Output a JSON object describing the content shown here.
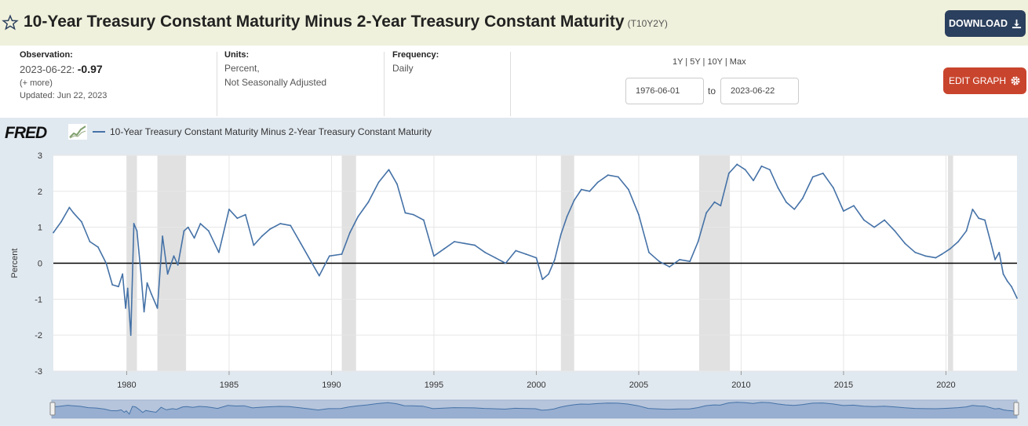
{
  "header": {
    "title": "10-Year Treasury Constant Maturity Minus 2-Year Treasury Constant Maturity",
    "series_id": "(T10Y2Y)",
    "download_label": "DOWNLOAD"
  },
  "observation": {
    "label": "Observation:",
    "date": "2023-06-22:",
    "value": "-0.97",
    "more": "(+ more)",
    "updated": "Updated: Jun 22, 2023"
  },
  "units": {
    "label": "Units:",
    "line1": "Percent,",
    "line2": "Not Seasonally Adjusted"
  },
  "frequency": {
    "label": "Frequency:",
    "value": "Daily"
  },
  "range": {
    "links": "1Y | 5Y | 10Y | Max",
    "start": "1976-06-01",
    "to": "to",
    "end": "2023-06-22"
  },
  "edit_label": "EDIT GRAPH",
  "logo_text": "FRED",
  "colors": {
    "line": "#4572a7",
    "recession": "#e1e1e1",
    "header_bg": "#f0f1dc",
    "download_bg": "#2b3f5e",
    "edit_bg": "#c9442d"
  },
  "chart_data": {
    "type": "line",
    "ylabel": "Percent",
    "ylim": [
      -3,
      3
    ],
    "xlim": [
      1976.42,
      2023.47
    ],
    "yticks": [
      -3,
      -2,
      -1,
      0,
      1,
      2,
      3
    ],
    "xticks": [
      1980,
      1985,
      1990,
      1995,
      2000,
      2005,
      2010,
      2015,
      2020
    ],
    "recessions": [
      [
        1980.0,
        1980.5
      ],
      [
        1981.5,
        1982.9
      ],
      [
        1990.5,
        1991.2
      ],
      [
        2001.2,
        2001.85
      ],
      [
        2007.95,
        2009.45
      ],
      [
        2020.1,
        2020.35
      ]
    ],
    "series": [
      {
        "name": "10-Year Treasury Constant Maturity Minus 2-Year Treasury Constant Maturity",
        "x": [
          1976.42,
          1976.8,
          1977.2,
          1977.4,
          1977.8,
          1978.2,
          1978.6,
          1979.0,
          1979.3,
          1979.6,
          1979.8,
          1979.95,
          1980.05,
          1980.2,
          1980.35,
          1980.5,
          1980.7,
          1980.85,
          1981.0,
          1981.2,
          1981.5,
          1981.75,
          1982.0,
          1982.3,
          1982.5,
          1982.8,
          1983.0,
          1983.3,
          1983.6,
          1984.0,
          1984.5,
          1985.0,
          1985.4,
          1985.8,
          1986.2,
          1986.6,
          1987.0,
          1987.5,
          1988.0,
          1988.5,
          1989.0,
          1989.4,
          1989.9,
          1990.5,
          1990.9,
          1991.3,
          1991.8,
          1992.3,
          1992.8,
          1993.2,
          1993.6,
          1994.0,
          1994.5,
          1995.0,
          1995.5,
          1996.0,
          1996.5,
          1997.0,
          1997.5,
          1998.0,
          1998.5,
          1999.0,
          1999.5,
          2000.0,
          2000.3,
          2000.6,
          2000.9,
          2001.2,
          2001.5,
          2001.85,
          2002.2,
          2002.6,
          2003.0,
          2003.5,
          2004.0,
          2004.5,
          2005.0,
          2005.5,
          2006.0,
          2006.5,
          2007.0,
          2007.5,
          2007.9,
          2008.3,
          2008.7,
          2009.0,
          2009.4,
          2009.8,
          2010.2,
          2010.6,
          2011.0,
          2011.4,
          2011.8,
          2012.2,
          2012.6,
          2013.0,
          2013.5,
          2014.0,
          2014.5,
          2015.0,
          2015.5,
          2016.0,
          2016.5,
          2017.0,
          2017.5,
          2018.0,
          2018.5,
          2019.0,
          2019.5,
          2019.8,
          2020.2,
          2020.6,
          2021.0,
          2021.3,
          2021.6,
          2021.9,
          2022.2,
          2022.4,
          2022.6,
          2022.8,
          2023.0,
          2023.2,
          2023.47
        ],
        "values": [
          0.85,
          1.15,
          1.55,
          1.4,
          1.15,
          0.6,
          0.45,
          0.0,
          -0.6,
          -0.65,
          -0.3,
          -1.25,
          -0.7,
          -2.0,
          1.1,
          0.9,
          -0.3,
          -1.35,
          -0.55,
          -0.85,
          -1.25,
          0.75,
          -0.3,
          0.2,
          -0.05,
          0.9,
          1.0,
          0.7,
          1.1,
          0.9,
          0.3,
          1.5,
          1.25,
          1.35,
          0.5,
          0.75,
          0.95,
          1.1,
          1.05,
          0.55,
          0.05,
          -0.35,
          0.2,
          0.25,
          0.85,
          1.3,
          1.7,
          2.25,
          2.6,
          2.2,
          1.4,
          1.35,
          1.2,
          0.2,
          0.4,
          0.6,
          0.55,
          0.5,
          0.3,
          0.15,
          0.0,
          0.35,
          0.25,
          0.15,
          -0.45,
          -0.3,
          0.1,
          0.8,
          1.3,
          1.75,
          2.05,
          2.0,
          2.25,
          2.45,
          2.4,
          2.05,
          1.35,
          0.3,
          0.05,
          -0.1,
          0.1,
          0.05,
          0.6,
          1.4,
          1.7,
          1.6,
          2.5,
          2.75,
          2.6,
          2.3,
          2.7,
          2.6,
          2.1,
          1.7,
          1.5,
          1.8,
          2.4,
          2.5,
          2.1,
          1.45,
          1.6,
          1.2,
          1.0,
          1.2,
          0.9,
          0.55,
          0.3,
          0.2,
          0.15,
          0.25,
          0.4,
          0.6,
          0.9,
          1.5,
          1.25,
          1.2,
          0.55,
          0.1,
          0.3,
          -0.3,
          -0.5,
          -0.65,
          -0.97
        ]
      }
    ]
  }
}
